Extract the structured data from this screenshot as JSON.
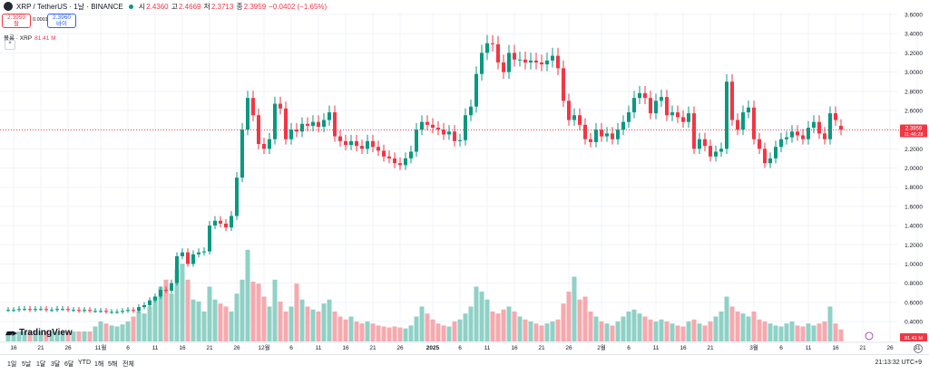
{
  "header": {
    "symbol": "XRP / TetherUS · 1날 · BINANCE",
    "open_label": "시",
    "open": "2.4360",
    "high_label": "고",
    "high": "2.4669",
    "low_label": "저",
    "low": "2.3713",
    "close_label": "종",
    "close": "2.3959",
    "change": "−0.0402 (−1.65%)",
    "sell_price": "2.3959",
    "sell_label": "팔",
    "spread": "0.0001",
    "buy_price": "2.3960",
    "buy_label": "바이",
    "volume_label": "볼륨 · XRP",
    "volume_value": "81.41 M",
    "collapse_icon": "^"
  },
  "last_price": {
    "value": "2.3959",
    "countdown": "11:46:28"
  },
  "volume_badge": "81.41 M",
  "timeframes": [
    "1일",
    "5날",
    "1달",
    "3달",
    "6달",
    "YTD",
    "1해",
    "5해",
    "전체"
  ],
  "clock": "21:13:32 UTC+9",
  "logo_text": "TradingView",
  "colors": {
    "up": "#089981",
    "down": "#f23645",
    "vol_up": "#8fd1c6",
    "vol_down": "#f6a9ae",
    "grid": "#f0f3fa",
    "last_price": "#f23645"
  },
  "chart_data": {
    "type": "candlestick",
    "y_axis": {
      "min": 0.4,
      "max": 3.6,
      "position": "right",
      "ticks": [
        0.4,
        0.6,
        0.8,
        1.0,
        1.2,
        1.4,
        1.6,
        1.8,
        2.0,
        2.2,
        2.4,
        2.6,
        2.8,
        3.0,
        3.2,
        3.4,
        3.6
      ],
      "tick_labels": [
        "0.4000",
        "0.6000",
        "0.8000",
        "1.0000",
        "1.2000",
        "1.4000",
        "1.6000",
        "1.8000",
        "2.0000",
        "2.2000",
        "2.4000",
        "2.6000",
        "2.8000",
        "3.0000",
        "3.2000",
        "3.4000",
        "3.6000"
      ]
    },
    "x_axis": {
      "tick_labels": [
        {
          "i": 0,
          "label": "16"
        },
        {
          "i": 5,
          "label": "21"
        },
        {
          "i": 10,
          "label": "26"
        },
        {
          "i": 16,
          "label": "11월"
        },
        {
          "i": 21,
          "label": "6"
        },
        {
          "i": 26,
          "label": "11"
        },
        {
          "i": 31,
          "label": "16"
        },
        {
          "i": 36,
          "label": "21"
        },
        {
          "i": 41,
          "label": "26"
        },
        {
          "i": 46,
          "label": "12월"
        },
        {
          "i": 51,
          "label": "6"
        },
        {
          "i": 56,
          "label": "11"
        },
        {
          "i": 61,
          "label": "16"
        },
        {
          "i": 66,
          "label": "21"
        },
        {
          "i": 71,
          "label": "26"
        },
        {
          "i": 77,
          "label": "2025"
        },
        {
          "i": 82,
          "label": "6"
        },
        {
          "i": 87,
          "label": "11"
        },
        {
          "i": 92,
          "label": "16"
        },
        {
          "i": 97,
          "label": "21"
        },
        {
          "i": 102,
          "label": "26"
        },
        {
          "i": 108,
          "label": "2월"
        },
        {
          "i": 113,
          "label": "6"
        },
        {
          "i": 118,
          "label": "11"
        },
        {
          "i": 123,
          "label": "16"
        },
        {
          "i": 128,
          "label": "21"
        },
        {
          "i": 136,
          "label": "3월"
        },
        {
          "i": 141,
          "label": "6"
        },
        {
          "i": 146,
          "label": "11"
        },
        {
          "i": 151,
          "label": "16"
        },
        {
          "i": 156,
          "label": "21"
        },
        {
          "i": 161,
          "label": "26"
        },
        {
          "i": 166,
          "label": "31"
        }
      ]
    },
    "last_index": 156,
    "close": [
      0.52,
      0.52,
      0.53,
      0.53,
      0.52,
      0.53,
      0.53,
      0.52,
      0.52,
      0.53,
      0.53,
      0.52,
      0.52,
      0.51,
      0.52,
      0.51,
      0.51,
      0.51,
      0.5,
      0.5,
      0.5,
      0.51,
      0.52,
      0.51,
      0.55,
      0.57,
      0.62,
      0.66,
      0.73,
      0.72,
      0.8,
      1.08,
      1.12,
      1.0,
      1.1,
      1.12,
      1.13,
      1.4,
      1.45,
      1.42,
      1.38,
      1.5,
      1.9,
      2.4,
      2.73,
      2.55,
      2.25,
      2.2,
      2.3,
      2.67,
      2.62,
      2.3,
      2.4,
      2.38,
      2.46,
      2.44,
      2.48,
      2.43,
      2.5,
      2.58,
      2.33,
      2.28,
      2.24,
      2.28,
      2.23,
      2.2,
      2.28,
      2.22,
      2.18,
      2.12,
      2.1,
      2.05,
      2.03,
      2.1,
      2.17,
      2.4,
      2.48,
      2.45,
      2.42,
      2.4,
      2.35,
      2.38,
      2.28,
      2.29,
      2.55,
      2.64,
      2.98,
      3.2,
      3.3,
      3.29,
      3.1,
      3.0,
      3.2,
      3.13,
      3.13,
      3.1,
      3.12,
      3.1,
      3.08,
      3.12,
      3.17,
      3.04,
      2.7,
      2.5,
      2.55,
      2.45,
      2.3,
      2.27,
      2.4,
      2.33,
      2.36,
      2.3,
      2.4,
      2.48,
      2.58,
      2.73,
      2.78,
      2.73,
      2.57,
      2.7,
      2.74,
      2.55,
      2.58,
      2.53,
      2.48,
      2.57,
      2.2,
      2.3,
      2.23,
      2.12,
      2.17,
      2.2,
      2.9,
      2.5,
      2.4,
      2.58,
      2.63,
      2.3,
      2.2,
      2.05,
      2.1,
      2.22,
      2.3,
      2.32,
      2.38,
      2.34,
      2.3,
      2.42,
      2.48,
      2.36,
      2.3,
      2.57,
      2.5,
      2.4
    ],
    "open": [
      0.52,
      0.52,
      0.52,
      0.53,
      0.53,
      0.52,
      0.53,
      0.53,
      0.52,
      0.52,
      0.53,
      0.53,
      0.52,
      0.52,
      0.51,
      0.52,
      0.51,
      0.51,
      0.51,
      0.5,
      0.5,
      0.5,
      0.51,
      0.52,
      0.51,
      0.55,
      0.57,
      0.62,
      0.66,
      0.73,
      0.72,
      0.8,
      1.08,
      1.12,
      1.0,
      1.1,
      1.12,
      1.13,
      1.4,
      1.45,
      1.42,
      1.38,
      1.5,
      1.9,
      2.4,
      2.73,
      2.55,
      2.25,
      2.2,
      2.3,
      2.67,
      2.62,
      2.3,
      2.4,
      2.38,
      2.46,
      2.44,
      2.48,
      2.43,
      2.5,
      2.58,
      2.33,
      2.28,
      2.24,
      2.28,
      2.23,
      2.2,
      2.28,
      2.22,
      2.18,
      2.12,
      2.1,
      2.05,
      2.03,
      2.1,
      2.17,
      2.4,
      2.48,
      2.45,
      2.42,
      2.4,
      2.35,
      2.38,
      2.28,
      2.29,
      2.55,
      2.64,
      2.98,
      3.2,
      3.3,
      3.29,
      3.1,
      3.0,
      3.2,
      3.13,
      3.13,
      3.1,
      3.12,
      3.1,
      3.08,
      3.12,
      3.17,
      3.04,
      2.7,
      2.5,
      2.55,
      2.45,
      2.3,
      2.27,
      2.4,
      2.33,
      2.36,
      2.3,
      2.4,
      2.48,
      2.58,
      2.73,
      2.78,
      2.73,
      2.57,
      2.7,
      2.74,
      2.55,
      2.58,
      2.53,
      2.48,
      2.57,
      2.2,
      2.3,
      2.23,
      2.12,
      2.17,
      2.2,
      2.9,
      2.5,
      2.4,
      2.58,
      2.63,
      2.3,
      2.2,
      2.05,
      2.1,
      2.22,
      2.3,
      2.32,
      2.38,
      2.34,
      2.3,
      2.42,
      2.48,
      2.36,
      2.3,
      2.57,
      2.44
    ],
    "volume_scale_max": 1.0,
    "volume": [
      0.1,
      0.1,
      0.1,
      0.1,
      0.1,
      0.1,
      0.1,
      0.1,
      0.1,
      0.1,
      0.1,
      0.1,
      0.1,
      0.1,
      0.1,
      0.1,
      0.15,
      0.2,
      0.18,
      0.16,
      0.15,
      0.17,
      0.2,
      0.25,
      0.3,
      0.28,
      0.35,
      0.45,
      0.55,
      0.62,
      0.48,
      0.72,
      0.78,
      0.62,
      0.42,
      0.4,
      0.3,
      0.55,
      0.42,
      0.38,
      0.35,
      0.3,
      0.48,
      0.62,
      0.92,
      0.6,
      0.58,
      0.45,
      0.35,
      0.62,
      0.4,
      0.3,
      0.35,
      0.58,
      0.42,
      0.35,
      0.32,
      0.3,
      0.38,
      0.42,
      0.3,
      0.25,
      0.22,
      0.25,
      0.2,
      0.18,
      0.2,
      0.18,
      0.16,
      0.15,
      0.14,
      0.15,
      0.14,
      0.13,
      0.16,
      0.25,
      0.35,
      0.28,
      0.22,
      0.18,
      0.16,
      0.15,
      0.2,
      0.22,
      0.28,
      0.35,
      0.55,
      0.5,
      0.42,
      0.3,
      0.28,
      0.32,
      0.35,
      0.3,
      0.25,
      0.22,
      0.2,
      0.18,
      0.16,
      0.18,
      0.2,
      0.22,
      0.38,
      0.5,
      0.65,
      0.42,
      0.45,
      0.3,
      0.25,
      0.2,
      0.18,
      0.16,
      0.2,
      0.25,
      0.3,
      0.32,
      0.28,
      0.25,
      0.22,
      0.2,
      0.22,
      0.2,
      0.18,
      0.16,
      0.15,
      0.2,
      0.22,
      0.18,
      0.16,
      0.2,
      0.25,
      0.3,
      0.45,
      0.35,
      0.3,
      0.28,
      0.25,
      0.3,
      0.22,
      0.2,
      0.18,
      0.16,
      0.15,
      0.18,
      0.2,
      0.16,
      0.15,
      0.18,
      0.16,
      0.18,
      0.2,
      0.35,
      0.18,
      0.12
    ]
  }
}
